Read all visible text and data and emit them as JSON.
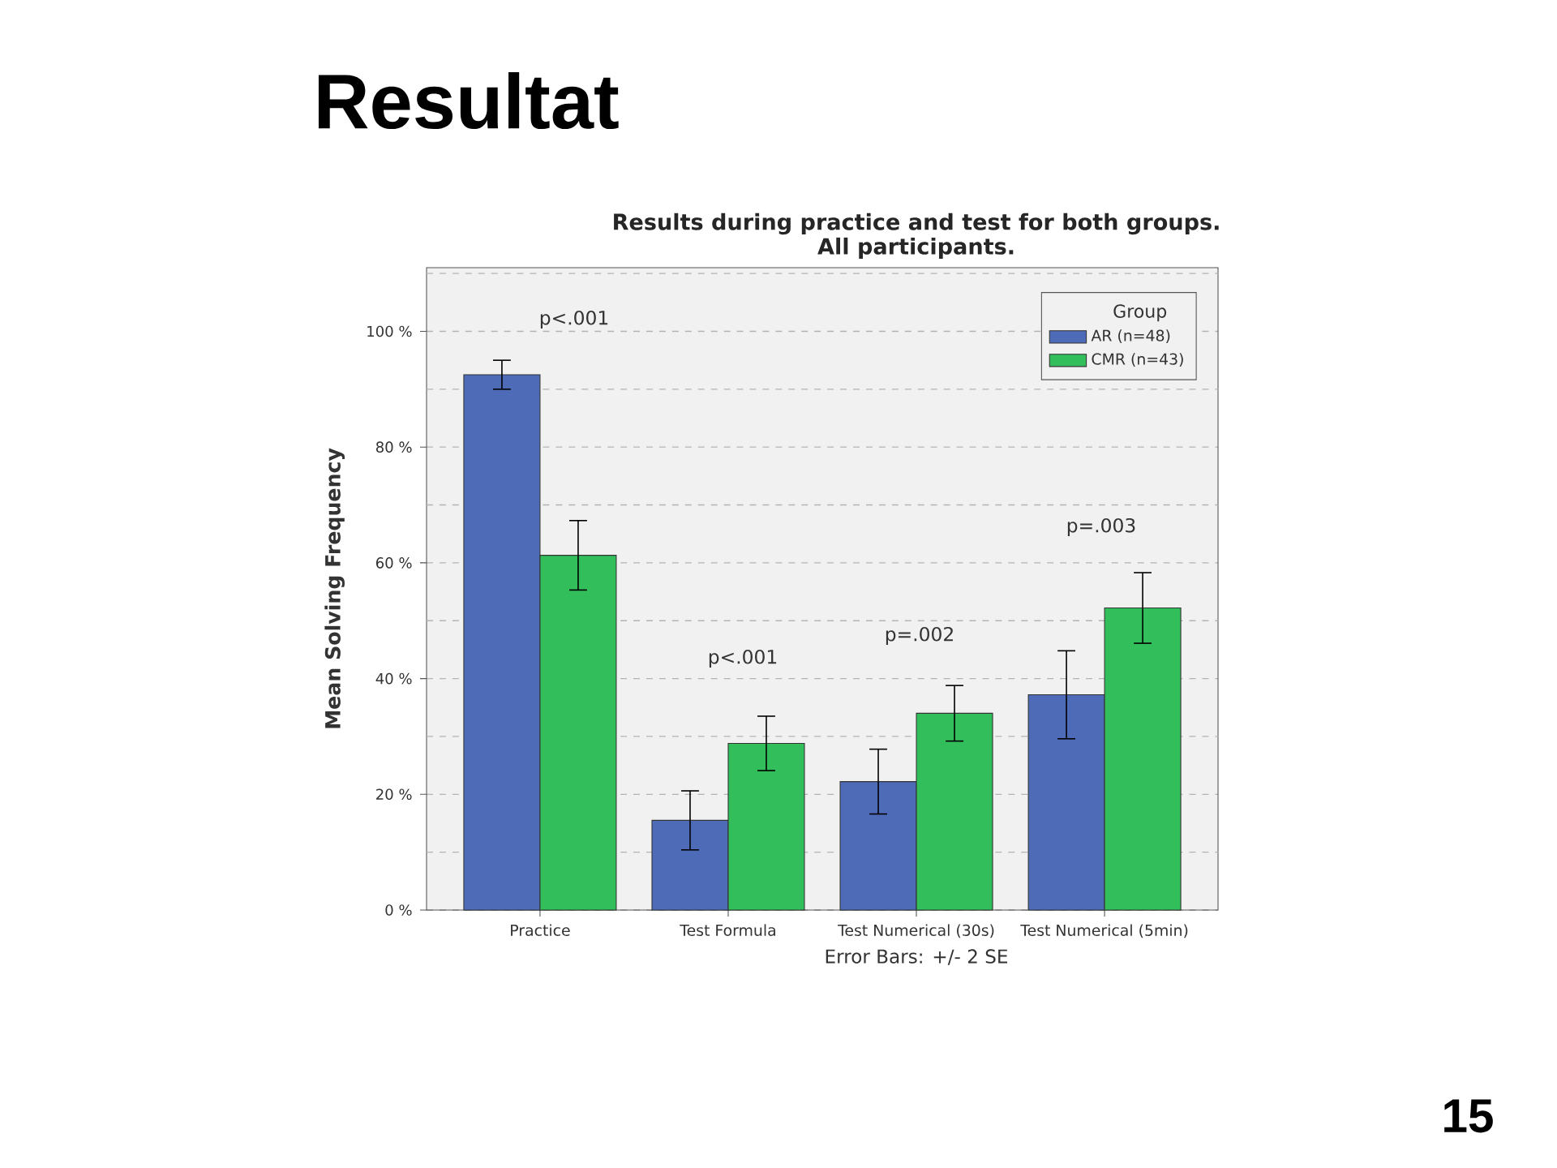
{
  "chart_data": {
    "type": "bar",
    "title": "Results during practice and test for both groups.",
    "subtitle": "All participants.",
    "ylabel": "Mean Solving Frequency",
    "legend_title": "Group",
    "categories": [
      "Practice",
      "Test Formula",
      "Test Numerical (30s)",
      "Test Numerical (5min)"
    ],
    "series": [
      {
        "name": "AR (n=48)",
        "color": "#4d6bb7",
        "values": [
          92.5,
          15.5,
          22.2,
          37.2
        ],
        "errors": [
          2.5,
          5.1,
          5.6,
          7.6
        ]
      },
      {
        "name": "CMR (n=43)",
        "color": "#32be5a",
        "values": [
          61.3,
          28.8,
          34.0,
          52.2
        ],
        "errors": [
          6.0,
          4.7,
          4.8,
          6.1
        ]
      }
    ],
    "ylim": [
      0,
      111
    ],
    "yticks": [
      {
        "value": 0,
        "label": "0 %"
      },
      {
        "value": 10,
        "label": null
      },
      {
        "value": 20,
        "label": "20 %"
      },
      {
        "value": 30,
        "label": null
      },
      {
        "value": 40,
        "label": "40 %"
      },
      {
        "value": 50,
        "label": null
      },
      {
        "value": 60,
        "label": "60 %"
      },
      {
        "value": 70,
        "label": null
      },
      {
        "value": 80,
        "label": "80 %"
      },
      {
        "value": 90,
        "label": null
      },
      {
        "value": 100,
        "label": "100 %"
      },
      {
        "value": 110,
        "label": null
      }
    ],
    "grid": "y",
    "legend": "top right",
    "annotations": [
      "Resultat",
      "p<.001",
      "p<.001",
      "p=.002",
      "p=.003",
      "Error Bars: +/- 2 SE",
      "15"
    ]
  }
}
